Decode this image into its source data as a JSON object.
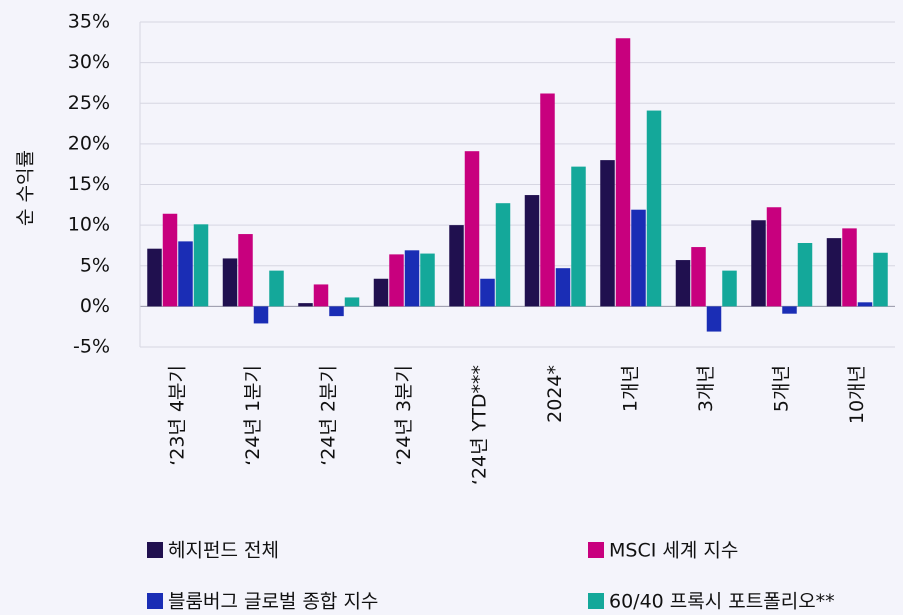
{
  "chart_data": {
    "type": "bar",
    "y_label": "순 수익률",
    "categories": [
      "‘23년 4분기",
      "‘24년 1분기",
      "‘24년 2분기",
      "‘24년 3분기",
      "‘24년 YTD***",
      "2024*",
      "1개년",
      "3개년",
      "5개년",
      "10개년"
    ],
    "series": [
      {
        "name": "헤지펀드 전체",
        "color": "#20104f",
        "values": [
          7.1,
          5.9,
          0.4,
          3.4,
          10.0,
          13.7,
          18.0,
          5.7,
          10.6,
          8.4
        ]
      },
      {
        "name": "MSCI 세계 지수",
        "color": "#c8007e",
        "values": [
          11.4,
          8.9,
          2.7,
          6.4,
          19.1,
          26.2,
          33.0,
          7.3,
          12.2,
          9.6
        ]
      },
      {
        "name": "블룸버그 글로벌 종합 지수",
        "color": "#1a2db5",
        "values": [
          8.0,
          -2.1,
          -1.2,
          6.9,
          3.4,
          4.7,
          11.9,
          -3.1,
          -0.9,
          0.5
        ]
      },
      {
        "name": "60/40 프록시 포트폴리오**",
        "color": "#14a89a",
        "values": [
          10.1,
          4.4,
          1.1,
          6.5,
          12.7,
          17.2,
          24.1,
          4.4,
          7.8,
          6.6
        ]
      }
    ],
    "ylim": [
      -5,
      35
    ],
    "yticks": [
      {
        "value": -5,
        "label": "-5%"
      },
      {
        "value": 0,
        "label": "0%"
      },
      {
        "value": 5,
        "label": "5%"
      },
      {
        "value": 10,
        "label": "10%"
      },
      {
        "value": 15,
        "label": "15%"
      },
      {
        "value": 20,
        "label": "20%"
      },
      {
        "value": 25,
        "label": "25%"
      },
      {
        "value": 30,
        "label": "30%"
      },
      {
        "value": 35,
        "label": "35%"
      }
    ],
    "grid": true
  }
}
